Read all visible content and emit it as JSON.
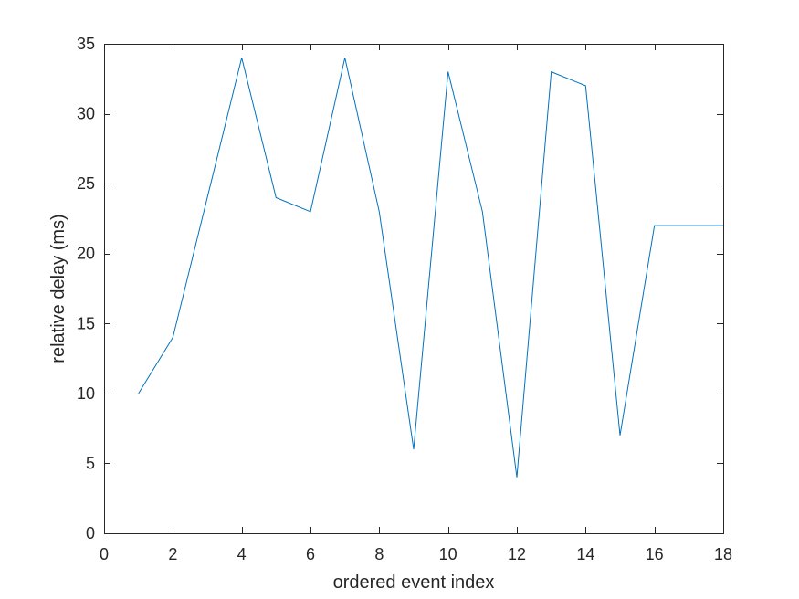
{
  "chart_data": {
    "type": "line",
    "title": "",
    "xlabel": "ordered event index",
    "ylabel": "relative delay (ms)",
    "xlim": [
      0,
      18
    ],
    "ylim": [
      0,
      35
    ],
    "xticks": [
      0,
      2,
      4,
      6,
      8,
      10,
      12,
      14,
      16,
      18
    ],
    "yticks": [
      0,
      5,
      10,
      15,
      20,
      25,
      30,
      35
    ],
    "grid": false,
    "legend": "none",
    "series": [
      {
        "color": "#0072BD",
        "x": [
          1,
          2,
          3,
          4,
          5,
          6,
          7,
          8,
          9,
          10,
          11,
          12,
          13,
          14,
          15,
          16,
          17,
          18
        ],
        "y": [
          10,
          14,
          24,
          34,
          24,
          23,
          34,
          23,
          6,
          33,
          23,
          4,
          33,
          32,
          7,
          22,
          22,
          22
        ]
      }
    ]
  }
}
